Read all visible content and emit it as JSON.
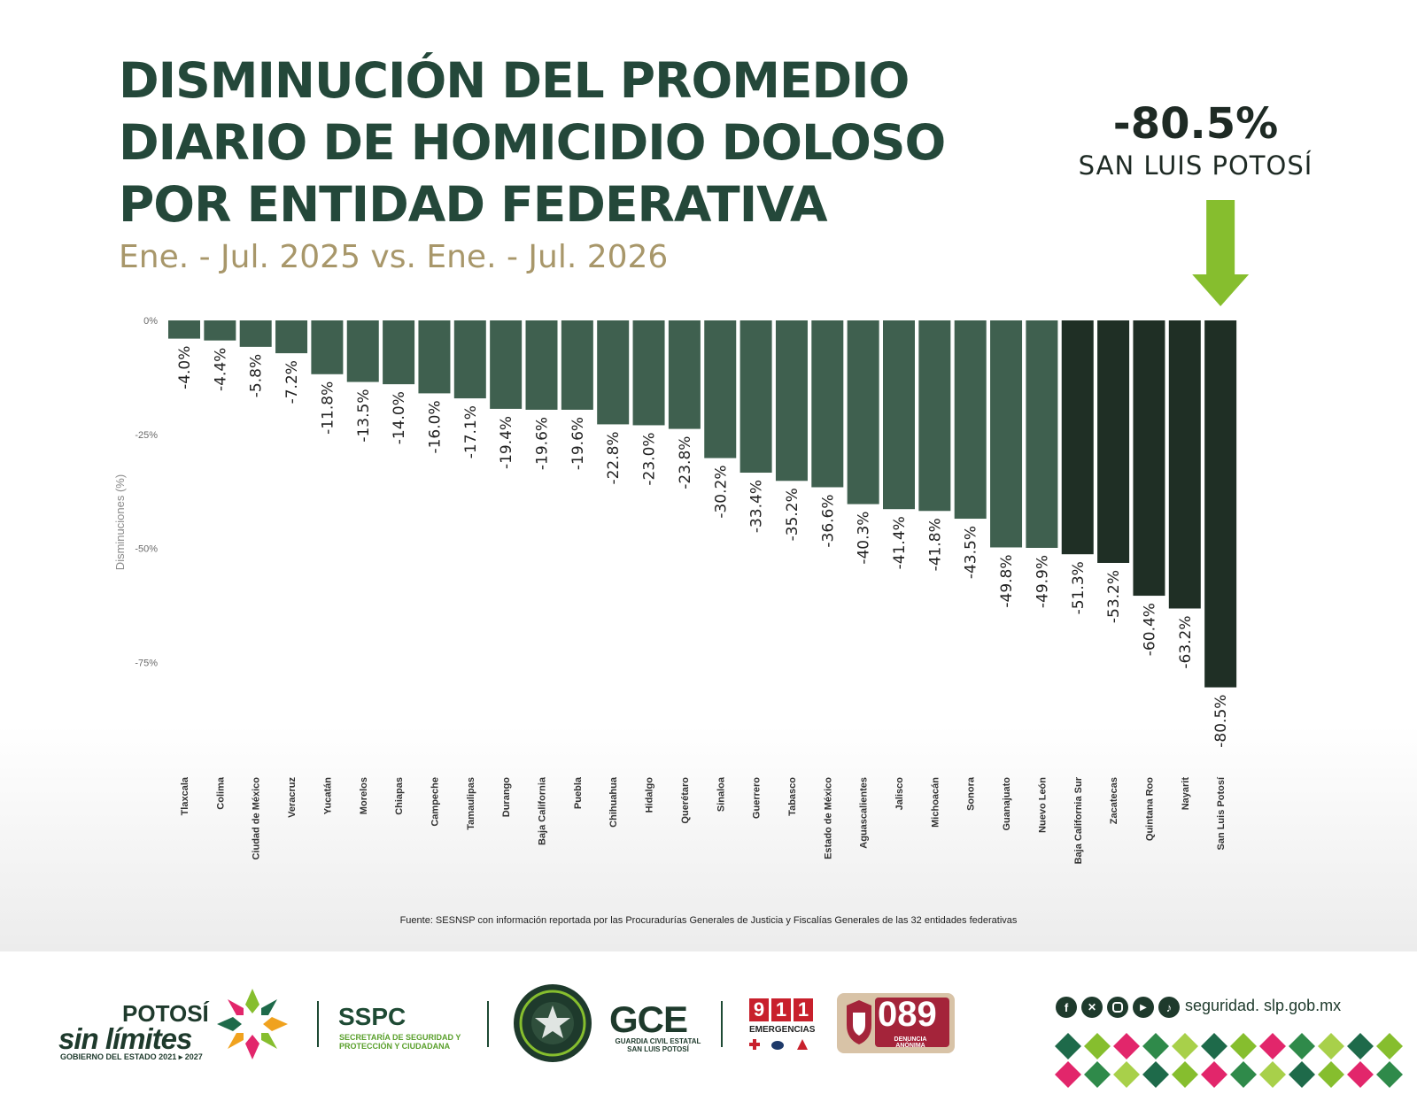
{
  "title_lines": [
    "DISMINUCIÓN DEL PROMEDIO",
    "DIARIO DE HOMICIDIO DOLOSO",
    "POR ENTIDAD FEDERATIVA"
  ],
  "subtitle": "Ene. - Jul. 2025 vs. Ene. - Jul. 2026",
  "highlight": {
    "value": "-80.5%",
    "name": "SAN LUIS POTOSÍ"
  },
  "colors": {
    "bar": "#3f604f",
    "bar_dark": "#1f2f25",
    "title": "#24483a",
    "subtitle": "#a8976a",
    "arrow": "#86be2e"
  },
  "chart_data": {
    "type": "bar",
    "ylabel": "Disminuciones (%)",
    "ylim": [
      -80.5,
      0
    ],
    "yticks": [
      0,
      -25,
      -50,
      -75
    ],
    "ytick_labels": [
      "0%",
      "-25%",
      "-50%",
      "-75%"
    ],
    "grid": false,
    "categories": [
      "Tlaxcala",
      "Colima",
      "Ciudad de México",
      "Veracruz",
      "Yucatán",
      "Morelos",
      "Chiapas",
      "Campeche",
      "Tamaulipas",
      "Durango",
      "Baja California",
      "Puebla",
      "Chihuahua",
      "Hidalgo",
      "Querétaro",
      "Sinaloa",
      "Guerrero",
      "Tabasco",
      "Estado de México",
      "Aguascalientes",
      "Jalisco",
      "Michoacán",
      "Sonora",
      "Guanajuato",
      "Nuevo León",
      "Baja California Sur",
      "Zacatecas",
      "Quintana Roo",
      "Nayarit",
      "San Luis Potosí"
    ],
    "values": [
      -4.0,
      -4.4,
      -5.8,
      -7.2,
      -11.8,
      -13.5,
      -14.0,
      -16.0,
      -17.1,
      -19.4,
      -19.6,
      -19.6,
      -22.8,
      -23.0,
      -23.8,
      -30.2,
      -33.4,
      -35.2,
      -36.6,
      -40.3,
      -41.4,
      -41.8,
      -43.5,
      -49.8,
      -49.9,
      -51.3,
      -53.2,
      -60.4,
      -63.2,
      -80.5
    ],
    "data_labels": [
      "-4.0%",
      "-4.4%",
      "-5.8%",
      "-7.2%",
      "-11.8%",
      "-13.5%",
      "-14.0%",
      "-16.0%",
      "-17.1%",
      "-19.4%",
      "-19.6%",
      "-19.6%",
      "-22.8%",
      "-23.0%",
      "-23.8%",
      "-30.2%",
      "-33.4%",
      "-35.2%",
      "-36.6%",
      "-40.3%",
      "-41.4%",
      "-41.8%",
      "-43.5%",
      "-49.8%",
      "-49.9%",
      "-51.3%",
      "-53.2%",
      "-60.4%",
      "-63.2%",
      "-80.5%"
    ],
    "dark_from_index": 25
  },
  "source": "Fuente: SESNSP con información reportada por las Procuradurías Generales de Justicia y Fiscalías Generales de las 32 entidades federativas",
  "footer": {
    "potosi_top": "POTOSÍ",
    "potosi_mid": "sin límites",
    "potosi_bottom": "GOBIERNO DEL ESTADO 2021 ▸ 2027",
    "sspc_name": "SSPC",
    "sspc_sub": "SECRETARÍA DE SEGURIDAD Y PROTECCIÓN Y CIUDADANA",
    "gce_name": "GCE",
    "gce_sub": "GUARDIA CIVIL ESTATAL SAN LUIS POTOSÍ",
    "e911_digits": [
      "9",
      "1",
      "1"
    ],
    "e911_label": "EMERGENCIAS",
    "e089_num": "089",
    "e089_sub": "DENUNCIA ANÓNIMA",
    "website": "seguridad. slp.gob.mx",
    "social_icons": [
      "facebook-icon",
      "x-icon",
      "instagram-icon",
      "youtube-icon",
      "tiktok-icon"
    ]
  }
}
